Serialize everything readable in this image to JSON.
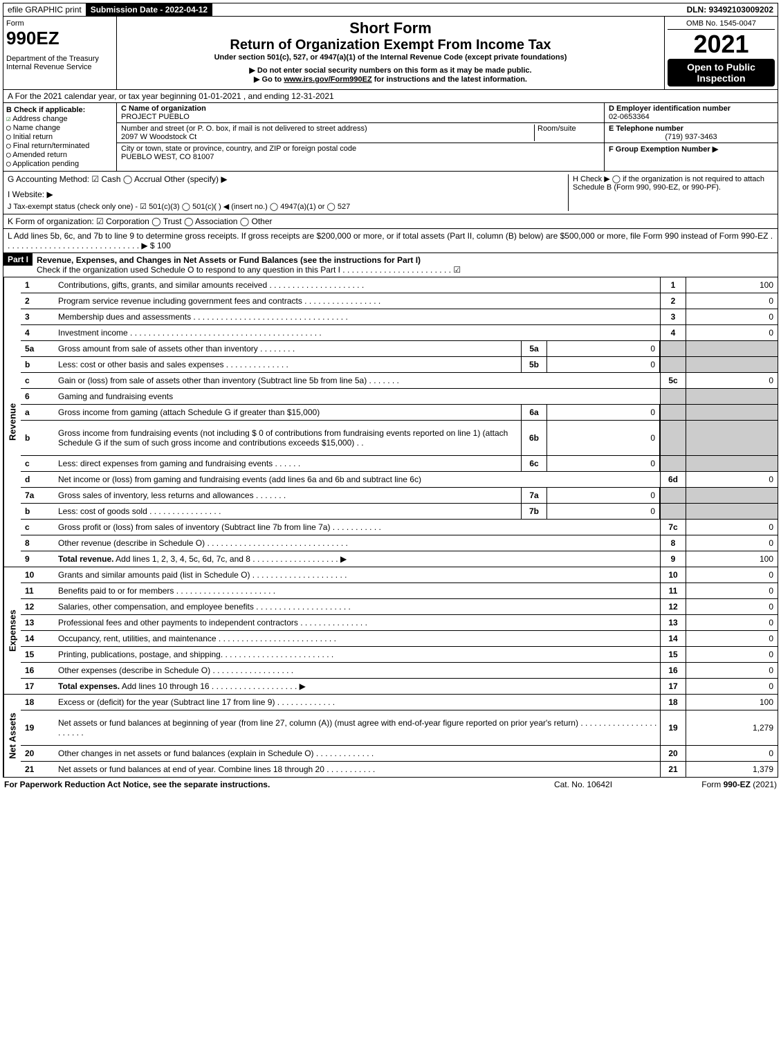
{
  "topbar": {
    "efile": "efile GRAPHIC print",
    "submission": "Submission Date - 2022-04-12",
    "dln": "DLN: 93492103009202"
  },
  "header": {
    "form_word": "Form",
    "form_no": "990EZ",
    "dept": "Department of the Treasury\nInternal Revenue Service",
    "short": "Short Form",
    "title": "Return of Organization Exempt From Income Tax",
    "sub1": "Under section 501(c), 527, or 4947(a)(1) of the Internal Revenue Code (except private foundations)",
    "sub2": "▶ Do not enter social security numbers on this form as it may be made public.",
    "sub3": "▶ Go to www.irs.gov/Form990EZ for instructions and the latest information.",
    "omb": "OMB No. 1545-0047",
    "year": "2021",
    "open": "Open to Public Inspection"
  },
  "A": "A  For the 2021 calendar year, or tax year beginning 01-01-2021 , and ending 12-31-2021",
  "B": {
    "label": "B  Check if applicable:",
    "items": [
      "Address change",
      "Name change",
      "Initial return",
      "Final return/terminated",
      "Amended return",
      "Application pending"
    ],
    "checked_idx": 0
  },
  "C": {
    "name_label": "C Name of organization",
    "name": "PROJECT PUEBLO",
    "street_label": "Number and street (or P. O. box, if mail is not delivered to street address)",
    "room_label": "Room/suite",
    "street": "2097 W Woodstock Ct",
    "city_label": "City or town, state or province, country, and ZIP or foreign postal code",
    "city": "PUEBLO WEST, CO  81007"
  },
  "D": {
    "ein_label": "D Employer identification number",
    "ein": "02-0653364",
    "phone_label": "E Telephone number",
    "phone": "(719) 937-3463",
    "group_label": "F Group Exemption Number  ▶"
  },
  "G": "G Accounting Method:   ☑ Cash  ◯ Accrual  Other (specify) ▶",
  "H": "H  Check ▶  ◯ if the organization is not required to attach Schedule B (Form 990, 990-EZ, or 990-PF).",
  "I": "I Website: ▶",
  "J": "J Tax-exempt status (check only one) - ☑ 501(c)(3) ◯ 501(c)(  ) ◀ (insert no.) ◯ 4947(a)(1) or ◯ 527",
  "K": "K Form of organization:  ☑ Corporation  ◯ Trust  ◯ Association  ◯ Other",
  "L": "L Add lines 5b, 6c, and 7b to line 9 to determine gross receipts. If gross receipts are $200,000 or more, or if total assets (Part II, column (B) below) are $500,000 or more, file Form 990 instead of Form 990-EZ . . . . . . . . . . . . . . . . . . . . . . . . . . . . . . ▶ $ 100",
  "part1": {
    "label": "Part I",
    "title": "Revenue, Expenses, and Changes in Net Assets or Fund Balances (see the instructions for Part I)",
    "check": "Check if the organization used Schedule O to respond to any question in this Part I . . . . . . . . . . . . . . . . . . . . . . . . ☑"
  },
  "side_labels": {
    "revenue": "Revenue",
    "expenses": "Expenses",
    "netassets": "Net Assets"
  },
  "rows": [
    {
      "n": "1",
      "d": "Contributions, gifts, grants, and similar amounts received . . . . . . . . . . . . . . . . . . . . .",
      "mn": "1",
      "mv": "100"
    },
    {
      "n": "2",
      "d": "Program service revenue including government fees and contracts . . . . . . . . . . . . . . . . .",
      "mn": "2",
      "mv": "0"
    },
    {
      "n": "3",
      "d": "Membership dues and assessments . . . . . . . . . . . . . . . . . . . . . . . . . . . . . . . . . .",
      "mn": "3",
      "mv": "0"
    },
    {
      "n": "4",
      "d": "Investment income . . . . . . . . . . . . . . . . . . . . . . . . . . . . . . . . . . . . . . . . . .",
      "mn": "4",
      "mv": "0"
    },
    {
      "n": "5a",
      "d": "Gross amount from sale of assets other than inventory . . . . . . . .",
      "sn": "5a",
      "sv": "0",
      "grey": true
    },
    {
      "n": "b",
      "d": "Less: cost or other basis and sales expenses . . . . . . . . . . . . . .",
      "sn": "5b",
      "sv": "0",
      "grey": true
    },
    {
      "n": "c",
      "d": "Gain or (loss) from sale of assets other than inventory (Subtract line 5b from line 5a) . . . . . . .",
      "mn": "5c",
      "mv": "0"
    },
    {
      "n": "6",
      "d": "Gaming and fundraising events",
      "grey": true,
      "nosub": true
    },
    {
      "n": "a",
      "d": "Gross income from gaming (attach Schedule G if greater than $15,000)",
      "sn": "6a",
      "sv": "0",
      "grey": true
    },
    {
      "n": "b",
      "d": "Gross income from fundraising events (not including $ 0               of contributions from fundraising events reported on line 1) (attach Schedule G if the sum of such gross income and contributions exceeds $15,000)    .  .",
      "sn": "6b",
      "sv": "0",
      "grey": true,
      "tall": true
    },
    {
      "n": "c",
      "d": "Less: direct expenses from gaming and fundraising events . . . . . .",
      "sn": "6c",
      "sv": "0",
      "grey": true
    },
    {
      "n": "d",
      "d": "Net income or (loss) from gaming and fundraising events (add lines 6a and 6b and subtract line 6c)",
      "mn": "6d",
      "mv": "0"
    },
    {
      "n": "7a",
      "d": "Gross sales of inventory, less returns and allowances . . . . . . .",
      "sn": "7a",
      "sv": "0",
      "grey": true
    },
    {
      "n": "b",
      "d": "Less: cost of goods sold       .  .  .  .  .  .  .  .  .  .  .  .  .  .  .  .",
      "sn": "7b",
      "sv": "0",
      "grey": true
    },
    {
      "n": "c",
      "d": "Gross profit or (loss) from sales of inventory (Subtract line 7b from line 7a) . . . . . . . . . . .",
      "mn": "7c",
      "mv": "0"
    },
    {
      "n": "8",
      "d": "Other revenue (describe in Schedule O) . . . . . . . . . . . . . . . . . . . . . . . . . . . . . . .",
      "mn": "8",
      "mv": "0"
    },
    {
      "n": "9",
      "d": "Total revenue. Add lines 1, 2, 3, 4, 5c, 6d, 7c, and 8  . . . . . . . . . . . . . . . . . . .  ▶",
      "mn": "9",
      "mv": "100",
      "bold": true
    }
  ],
  "exp_rows": [
    {
      "n": "10",
      "d": "Grants and similar amounts paid (list in Schedule O) . . . . . . . . . . . . . . . . . . . . .",
      "mn": "10",
      "mv": "0"
    },
    {
      "n": "11",
      "d": "Benefits paid to or for members     .  .  .  .  .  .  .  .  .  .  .  .  .  .  .  .  .  .  .  .  .  .",
      "mn": "11",
      "mv": "0"
    },
    {
      "n": "12",
      "d": "Salaries, other compensation, and employee benefits . . . . . . . . . . . . . . . . . . . . .",
      "mn": "12",
      "mv": "0"
    },
    {
      "n": "13",
      "d": "Professional fees and other payments to independent contractors . . . . . . . . . . . . . . .",
      "mn": "13",
      "mv": "0"
    },
    {
      "n": "14",
      "d": "Occupancy, rent, utilities, and maintenance . . . . . . . . . . . . . . . . . . . . . . . . . .",
      "mn": "14",
      "mv": "0"
    },
    {
      "n": "15",
      "d": "Printing, publications, postage, and shipping. . . . . . . . . . . . . . . . . . . . . . . . .",
      "mn": "15",
      "mv": "0"
    },
    {
      "n": "16",
      "d": "Other expenses (describe in Schedule O)     .  .  .  .  .  .  .  .  .  .  .  .  .  .  .  .  .  .",
      "mn": "16",
      "mv": "0"
    },
    {
      "n": "17",
      "d": "Total expenses. Add lines 10 through 16       .  .  .  .  .  .  .  .  .  .  .  .  .  .  .  .  .  .  .  ▶",
      "mn": "17",
      "mv": "0",
      "bold": true
    }
  ],
  "net_rows": [
    {
      "n": "18",
      "d": "Excess or (deficit) for the year (Subtract line 17 from line 9)         .  .  .  .  .  .  .  .  .  .  .  .  .",
      "mn": "18",
      "mv": "100"
    },
    {
      "n": "19",
      "d": "Net assets or fund balances at beginning of year (from line 27, column (A)) (must agree with end-of-year figure reported on prior year's return) . . . . . . . . . . . . . . . . . . . . . . .",
      "mn": "19",
      "mv": "1,279",
      "tall": true
    },
    {
      "n": "20",
      "d": "Other changes in net assets or fund balances (explain in Schedule O) . . . . . . . . . . . . .",
      "mn": "20",
      "mv": "0"
    },
    {
      "n": "21",
      "d": "Net assets or fund balances at end of year. Combine lines 18 through 20 . . . . . . . . . . .",
      "mn": "21",
      "mv": "1,379"
    }
  ],
  "footer": {
    "l": "For Paperwork Reduction Act Notice, see the separate instructions.",
    "m": "Cat. No. 10642I",
    "r": "Form 990-EZ (2021)"
  }
}
